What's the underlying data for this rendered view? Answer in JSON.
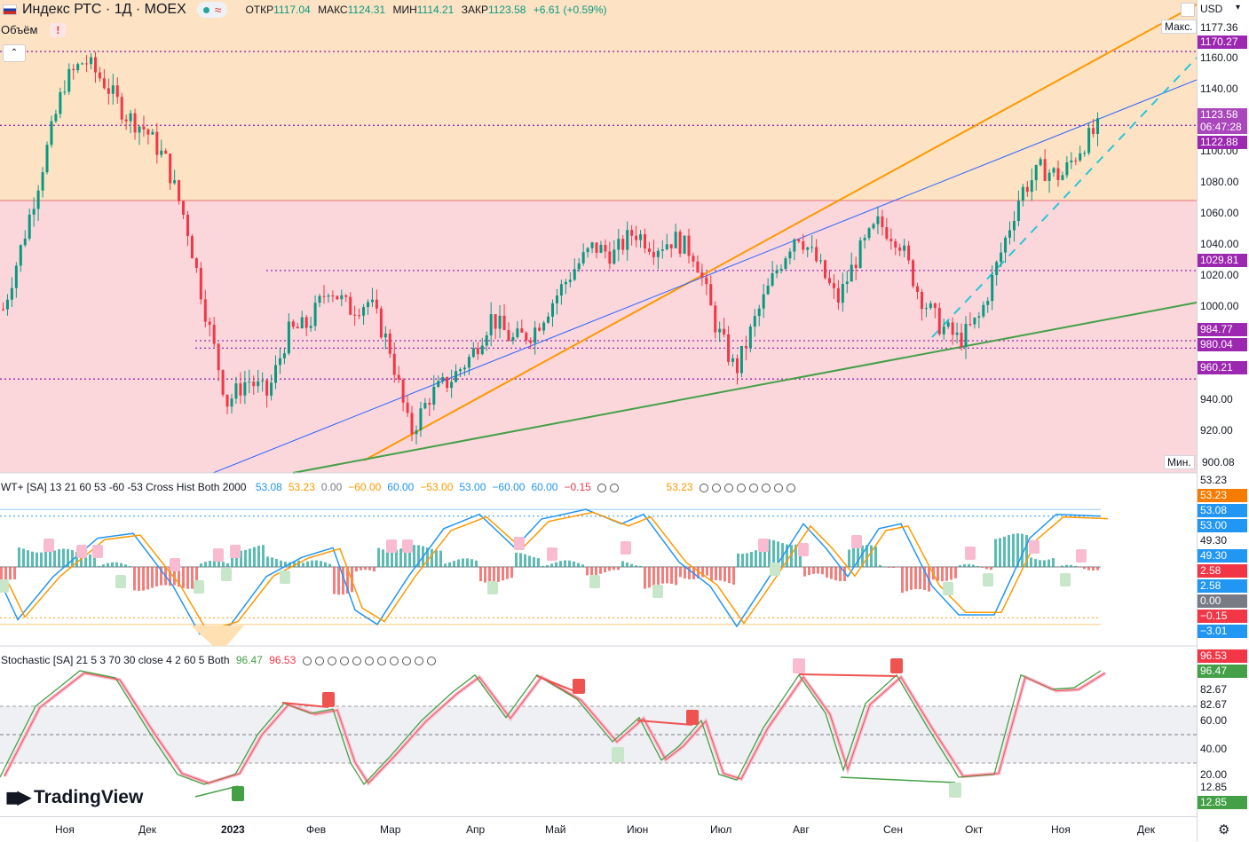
{
  "header": {
    "title": "Индекс РТС · 1Д · MOEX",
    "open_label": "ОТКР",
    "open": "1117.04",
    "high_label": "МАКС",
    "high": "1124.31",
    "low_label": "МИН",
    "low": "1114.21",
    "close_label": "ЗАКР",
    "close": "1123.58",
    "change": "+6.61 (+0.59%)",
    "pill_icon": "≈",
    "currency": "USD",
    "volume_label": "Объём",
    "volume_alert": "!",
    "collapse_glyph": "⌃"
  },
  "colors": {
    "up": "#089981",
    "down": "#f23645",
    "orange": "#ff9800",
    "blue": "#2962ff",
    "green": "#43a047",
    "purple": "#9c27b0",
    "zone_top": "#fde3c4",
    "zone_bottom": "#fbd7dc"
  },
  "price_axis": {
    "ticks": [
      "1177.36",
      "1160.00",
      "1140.00",
      "1100.00",
      "1080.00",
      "1060.00",
      "1040.00",
      "1020.00",
      "1000.00",
      "940.00",
      "920.00",
      "900.08"
    ],
    "max_label": "Макс.",
    "min_label": "Мин.",
    "tags": [
      {
        "text": "1170.27",
        "color": "#9c27b0"
      },
      {
        "text": "1123.58",
        "color": "#ab47bc"
      },
      {
        "text": "06:47:28",
        "color": "#ab47bc"
      },
      {
        "text": "1122.88",
        "color": "#9c27b0"
      },
      {
        "text": "1029.81",
        "color": "#9c27b0"
      },
      {
        "text": "984.77",
        "color": "#9c27b0"
      },
      {
        "text": "980.04",
        "color": "#9c27b0"
      },
      {
        "text": "960.21",
        "color": "#9c27b0"
      }
    ]
  },
  "wt": {
    "legend_name": "WT+ [SA] 13 21 60 53 -60 -53 Cross Hist Both 2000",
    "values": [
      {
        "text": "53.08",
        "color": "#2196f3"
      },
      {
        "text": "53.23",
        "color": "#ff9800"
      },
      {
        "text": "0.00",
        "color": "#787b86"
      },
      {
        "text": "−60.00",
        "color": "#ff9800"
      },
      {
        "text": "60.00",
        "color": "#2196f3"
      },
      {
        "text": "−53.00",
        "color": "#ff9800"
      },
      {
        "text": "53.00",
        "color": "#2196f3"
      },
      {
        "text": "−60.00",
        "color": "#2196f3"
      },
      {
        "text": "60.00",
        "color": "#2196f3"
      },
      {
        "text": "−0.15",
        "color": "#f23645"
      }
    ],
    "extra_value": "53.23",
    "axis_tags": [
      {
        "text": "53.23",
        "bg": "#ffffff",
        "fg": "#131722"
      },
      {
        "text": "53.23",
        "bg": "#f57c00",
        "fg": "#ffffff"
      },
      {
        "text": "53.08",
        "bg": "#2196f3",
        "fg": "#ffffff"
      },
      {
        "text": "53.00",
        "bg": "#2196f3",
        "fg": "#ffffff"
      },
      {
        "text": "49.30",
        "bg": "#ffffff",
        "fg": "#131722"
      },
      {
        "text": "49.30",
        "bg": "#2196f3",
        "fg": "#ffffff"
      },
      {
        "text": "2.58",
        "bg": "#f23645",
        "fg": "#ffffff"
      },
      {
        "text": "2.58",
        "bg": "#2196f3",
        "fg": "#ffffff"
      },
      {
        "text": "0.00",
        "bg": "#787b86",
        "fg": "#ffffff"
      },
      {
        "text": "−0.15",
        "bg": "#f23645",
        "fg": "#ffffff"
      },
      {
        "text": "−3.01",
        "bg": "#2196f3",
        "fg": "#ffffff"
      }
    ]
  },
  "stoch": {
    "legend_name": "Stochastic [SA] 21 5 3 70 30 close 4 2 60 5 Both",
    "k": "96.47",
    "d": "96.53",
    "axis_tags": [
      {
        "text": "96.53",
        "bg": "#f23645",
        "fg": "#ffffff"
      },
      {
        "text": "96.47",
        "bg": "#43a047",
        "fg": "#ffffff"
      },
      {
        "text": "82.67",
        "bg": "#ffffff",
        "fg": "#131722"
      },
      {
        "text": "82.67",
        "bg": "#ffffff",
        "fg": "#131722"
      },
      {
        "text": "60.00",
        "bg": "#ffffff",
        "fg": "#131722"
      },
      {
        "text": "40.00",
        "bg": "#ffffff",
        "fg": "#131722"
      },
      {
        "text": "20.00",
        "bg": "#ffffff",
        "fg": "#131722"
      },
      {
        "text": "12.85",
        "bg": "#ffffff",
        "fg": "#131722"
      },
      {
        "text": "12.85",
        "bg": "#43a047",
        "fg": "#ffffff"
      }
    ]
  },
  "time_axis": [
    "Ноя",
    "Дек",
    "2023",
    "Фев",
    "Мар",
    "Апр",
    "Май",
    "Июн",
    "Июл",
    "Авг",
    "Сен",
    "Окт",
    "Ноя",
    "Дек"
  ],
  "watermark": "TradingView",
  "chart_data": {
    "type": "candlestick",
    "symbol": "Индекс РТС",
    "interval": "1Д",
    "exchange": "MOEX",
    "currency": "USD",
    "y_range": [
      900.08,
      1177.36
    ],
    "horizontal_levels": [
      1170.27,
      1122.88,
      1029.81,
      984.77,
      980.04,
      960.21
    ],
    "close_path": [
      [
        "Окт",
        1005
      ],
      [
        "Окт",
        1050
      ],
      [
        "Окт",
        1100
      ],
      [
        "Ноя",
        1150
      ],
      [
        "Ноя",
        1165
      ],
      [
        "Ноя",
        1150
      ],
      [
        "Ноя",
        1130
      ],
      [
        "Дек",
        1120
      ],
      [
        "Дек",
        1100
      ],
      [
        "Дек",
        1060
      ],
      [
        "Дек",
        1000
      ],
      [
        "Дек",
        945
      ],
      [
        "Дек",
        960
      ],
      [
        "2023",
        950
      ],
      [
        "2023",
        990
      ],
      [
        "2023",
        995
      ],
      [
        "Фев",
        1020
      ],
      [
        "Фев",
        1005
      ],
      [
        "Фев",
        1010
      ],
      [
        "Фев",
        980
      ],
      [
        "Мар",
        925
      ],
      [
        "Мар",
        950
      ],
      [
        "Мар",
        960
      ],
      [
        "Мар",
        975
      ],
      [
        "Апр",
        1000
      ],
      [
        "Апр",
        985
      ],
      [
        "Апр",
        990
      ],
      [
        "Апр",
        1010
      ],
      [
        "Май",
        1030
      ],
      [
        "Май",
        1045
      ],
      [
        "Май",
        1040
      ],
      [
        "Июн",
        1055
      ],
      [
        "Июн",
        1045
      ],
      [
        "Июн",
        1050
      ],
      [
        "Июн",
        1040
      ],
      [
        "Июл",
        995
      ],
      [
        "Июл",
        965
      ],
      [
        "Июл",
        1000
      ],
      [
        "Июл",
        1030
      ],
      [
        "Авг",
        1055
      ],
      [
        "Авг",
        1035
      ],
      [
        "Авг",
        1010
      ],
      [
        "Авг",
        1040
      ],
      [
        "Сен",
        1060
      ],
      [
        "Сен",
        1050
      ],
      [
        "Сен",
        1015
      ],
      [
        "Сен",
        995
      ],
      [
        "Окт",
        985
      ],
      [
        "Окт",
        1000
      ],
      [
        "Окт",
        1040
      ],
      [
        "Окт",
        1080
      ],
      [
        "Ноя",
        1095
      ],
      [
        "Ноя",
        1090
      ],
      [
        "Ноя",
        1110
      ],
      [
        "Ноя",
        1123.58
      ]
    ],
    "oscillators": [
      "WT+",
      "Stochastic"
    ]
  }
}
